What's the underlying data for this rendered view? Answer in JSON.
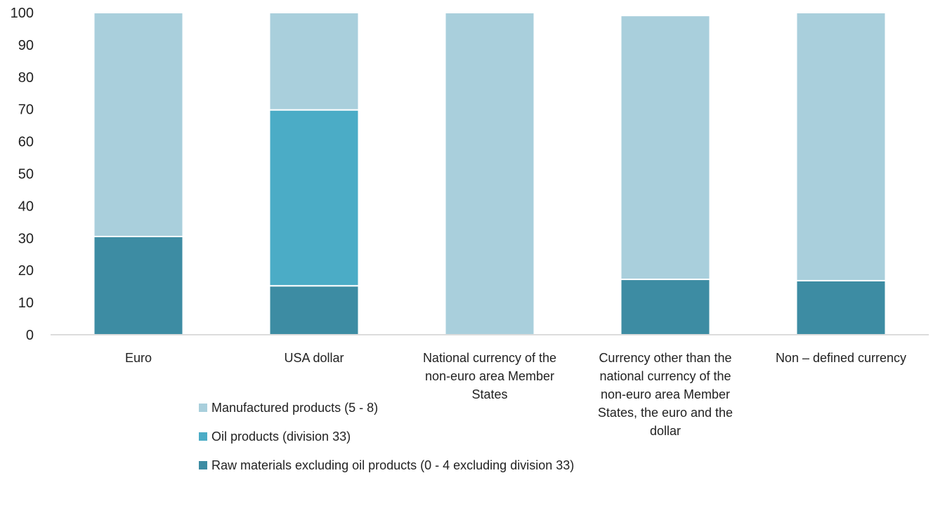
{
  "chart_data": {
    "type": "bar",
    "stacked": true,
    "categories": [
      [
        "Euro"
      ],
      [
        "USA dollar"
      ],
      [
        "National currency of the",
        "non-euro area Member",
        "States"
      ],
      [
        "Currency other than the",
        "national currency of the",
        "non-euro area Member",
        "States, the euro and the",
        "dollar"
      ],
      [
        "Non – defined currency"
      ]
    ],
    "series": [
      {
        "name": "Raw materials excluding oil products (0 - 4 excluding division 33)",
        "color": "#3d8ca3",
        "values": [
          30.5,
          15.2,
          0,
          17.2,
          16.8
        ]
      },
      {
        "name": "Oil products (division 33)",
        "color": "#4bacc6",
        "values": [
          0,
          54.6,
          0,
          0,
          0
        ]
      },
      {
        "name": "Manufactured products (5 - 8)",
        "color": "#a9cfdc",
        "values": [
          69.5,
          30.2,
          100,
          81.9,
          83.2
        ]
      }
    ],
    "legend_order": [
      2,
      1,
      0
    ],
    "ylim": [
      0,
      100
    ],
    "yticks": [
      0,
      10,
      20,
      30,
      40,
      50,
      60,
      70,
      80,
      90,
      100
    ],
    "title": "",
    "xlabel": "",
    "ylabel": "",
    "grid": false,
    "legend_position": "bottom"
  }
}
